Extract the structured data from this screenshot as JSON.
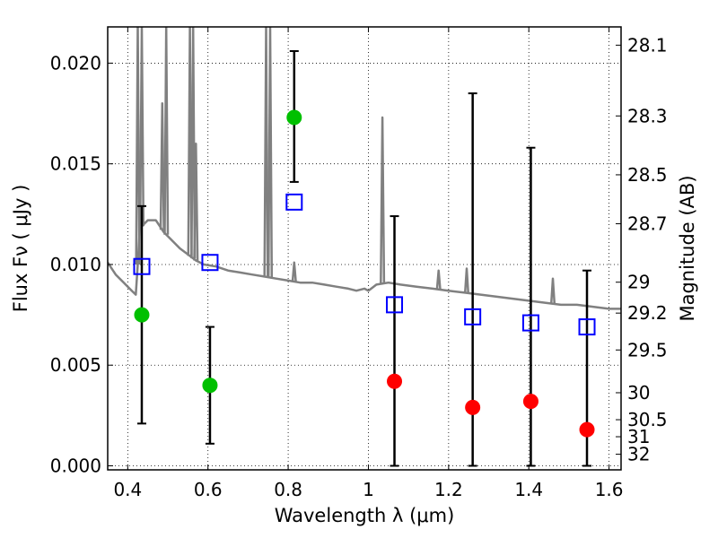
{
  "chart_data": {
    "type": "scatter",
    "xlabel": "Wavelength  λ (μm)",
    "ylabel": "Flux  Fν  ( μJy )",
    "y2label": "Magnitude (AB)",
    "xlim": [
      0.35,
      1.63
    ],
    "ylim": [
      -0.0002,
      0.0218
    ],
    "x_ticks": [
      0.4,
      0.6,
      0.8,
      1.0,
      1.2,
      1.4,
      1.6
    ],
    "x_tick_labels": [
      "0.4",
      "0.6",
      "0.8",
      "1",
      "1.2",
      "1.4",
      "1.6"
    ],
    "y_ticks": [
      0.0,
      0.005,
      0.01,
      0.015,
      0.02
    ],
    "y_tick_labels": [
      "0.000",
      "0.005",
      "0.010",
      "0.015",
      "0.020"
    ],
    "y2_ticks": [
      {
        "label": "28.1",
        "value": 28.1
      },
      {
        "label": "28.3",
        "value": 28.3
      },
      {
        "label": "28.5",
        "value": 28.5
      },
      {
        "label": "28.7",
        "value": 28.7
      },
      {
        "label": "29",
        "value": 29
      },
      {
        "label": "29.2",
        "value": 29.2
      },
      {
        "label": "29.5",
        "value": 29.5
      },
      {
        "label": "30",
        "value": 30
      },
      {
        "label": "30.5",
        "value": 30.5
      },
      {
        "label": "31",
        "value": 31
      },
      {
        "label": "32",
        "value": 32
      }
    ],
    "grid": true,
    "series": [
      {
        "kind": "template_spectrum",
        "color": "#808080",
        "points": [
          [
            0.35,
            0.0101
          ],
          [
            0.37,
            0.0095
          ],
          [
            0.39,
            0.0091
          ],
          [
            0.41,
            0.0087
          ],
          [
            0.42,
            0.0085
          ],
          [
            0.425,
            0.01
          ],
          [
            0.43,
            0.0118
          ],
          [
            0.45,
            0.0122
          ],
          [
            0.47,
            0.0122
          ],
          [
            0.49,
            0.0116
          ],
          [
            0.51,
            0.0112
          ],
          [
            0.53,
            0.0108
          ],
          [
            0.55,
            0.0105
          ],
          [
            0.57,
            0.0102
          ],
          [
            0.59,
            0.01
          ],
          [
            0.62,
            0.0099
          ],
          [
            0.65,
            0.0097
          ],
          [
            0.68,
            0.0096
          ],
          [
            0.71,
            0.0095
          ],
          [
            0.74,
            0.0094
          ],
          [
            0.77,
            0.0093
          ],
          [
            0.8,
            0.0092
          ],
          [
            0.83,
            0.0091
          ],
          [
            0.86,
            0.0091
          ],
          [
            0.89,
            0.009
          ],
          [
            0.92,
            0.0089
          ],
          [
            0.95,
            0.0088
          ],
          [
            0.97,
            0.0087
          ],
          [
            0.99,
            0.0088
          ],
          [
            1.0,
            0.0087
          ],
          [
            1.02,
            0.009
          ],
          [
            1.05,
            0.0091
          ],
          [
            1.08,
            0.009
          ],
          [
            1.12,
            0.0089
          ],
          [
            1.16,
            0.0088
          ],
          [
            1.2,
            0.0087
          ],
          [
            1.24,
            0.0086
          ],
          [
            1.28,
            0.0085
          ],
          [
            1.32,
            0.0084
          ],
          [
            1.36,
            0.0083
          ],
          [
            1.4,
            0.0082
          ],
          [
            1.44,
            0.0081
          ],
          [
            1.48,
            0.008
          ],
          [
            1.52,
            0.008
          ],
          [
            1.56,
            0.0079
          ],
          [
            1.6,
            0.0078
          ],
          [
            1.63,
            0.0078
          ]
        ],
        "lines": [
          {
            "x": 0.425,
            "peak": 0.022
          },
          {
            "x": 0.435,
            "peak": 0.0218
          },
          {
            "x": 0.486,
            "peak": 0.018
          },
          {
            "x": 0.496,
            "peak": 0.0218
          },
          {
            "x": 0.555,
            "peak": 0.0218
          },
          {
            "x": 0.563,
            "peak": 0.0218
          },
          {
            "x": 0.57,
            "peak": 0.016
          },
          {
            "x": 0.745,
            "peak": 0.0218
          },
          {
            "x": 0.755,
            "peak": 0.0218
          },
          {
            "x": 0.815,
            "peak": 0.0101
          },
          {
            "x": 1.035,
            "peak": 0.0173
          },
          {
            "x": 1.175,
            "peak": 0.0097
          },
          {
            "x": 1.245,
            "peak": 0.0098
          },
          {
            "x": 1.46,
            "peak": 0.0093
          }
        ]
      },
      {
        "name": "model_photometry",
        "marker": "open-square",
        "color": "#0000ff",
        "points": [
          {
            "x": 0.435,
            "y": 0.0099
          },
          {
            "x": 0.605,
            "y": 0.0101
          },
          {
            "x": 0.815,
            "y": 0.0131
          },
          {
            "x": 1.065,
            "y": 0.008
          },
          {
            "x": 1.26,
            "y": 0.0074
          },
          {
            "x": 1.405,
            "y": 0.0071
          },
          {
            "x": 1.545,
            "y": 0.0069
          }
        ]
      },
      {
        "name": "observed_detections",
        "marker": "filled-circle",
        "color": "#00c000",
        "points": [
          {
            "x": 0.435,
            "y": 0.0075,
            "err_low": 0.0021,
            "err_high": 0.0129
          },
          {
            "x": 0.605,
            "y": 0.004,
            "err_low": 0.0011,
            "err_high": 0.0069
          },
          {
            "x": 0.815,
            "y": 0.0173,
            "err_low": 0.0141,
            "err_high": 0.0206
          }
        ]
      },
      {
        "name": "observed_upper_limits",
        "marker": "filled-circle",
        "color": "#ff0000",
        "points": [
          {
            "x": 1.065,
            "y": 0.0042,
            "err_low": 0.0,
            "err_high": 0.0124
          },
          {
            "x": 1.26,
            "y": 0.0029,
            "err_low": 0.0,
            "err_high": 0.0185
          },
          {
            "x": 1.405,
            "y": 0.0032,
            "err_low": 0.0,
            "err_high": 0.0158
          },
          {
            "x": 1.545,
            "y": 0.0018,
            "err_low": 0.0,
            "err_high": 0.0097
          }
        ]
      }
    ]
  }
}
